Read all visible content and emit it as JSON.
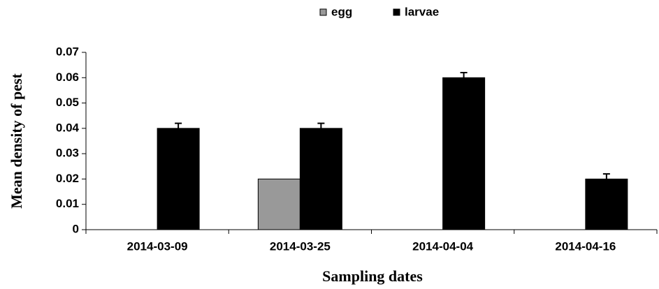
{
  "chart_data": {
    "type": "bar",
    "xlabel": "Sampling dates",
    "ylabel": "Mean density of pest",
    "categories": [
      "2014-03-09",
      "2014-03-25",
      "2014-04-04",
      "2014-04-16"
    ],
    "series": [
      {
        "name": "egg",
        "color": "#999999",
        "values": [
          0,
          0.02,
          0,
          0
        ],
        "errors": [
          0,
          0,
          0,
          0
        ]
      },
      {
        "name": "larvae",
        "color": "#000000",
        "values": [
          0.04,
          0.04,
          0.06,
          0.02
        ],
        "errors": [
          0.002,
          0.002,
          0.002,
          0.002
        ]
      }
    ],
    "ylim": [
      0,
      0.07
    ],
    "yticks": [
      0,
      0.01,
      0.02,
      0.03,
      0.04,
      0.05,
      0.06,
      0.07
    ],
    "legend": "top",
    "grid": false
  }
}
